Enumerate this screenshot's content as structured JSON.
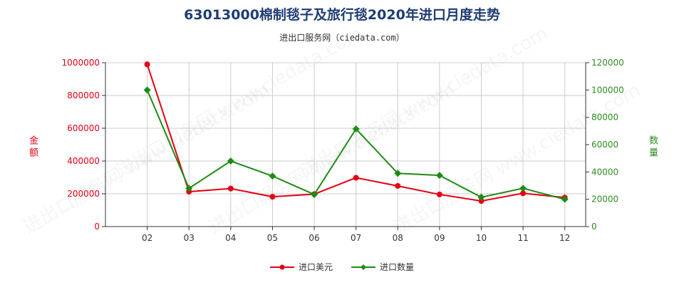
{
  "title": "63013000棉制毯子及旅行毯2020年进口月度走势",
  "subtitle": "进出口服务网（ciedata.com）",
  "watermark": "进出口服务网 www.ciedata.com",
  "colors": {
    "amount": "#e60012",
    "quantity": "#1e8c14",
    "grid": "#cccccc",
    "right_axis": "#2e8b20"
  },
  "chart_data": {
    "type": "line",
    "categories": [
      "02",
      "03",
      "04",
      "05",
      "06",
      "07",
      "08",
      "09",
      "10",
      "11",
      "12"
    ],
    "y_left": {
      "label": "金额",
      "ylim": [
        0,
        1000000
      ],
      "ticks": [
        0,
        200000,
        400000,
        600000,
        800000,
        1000000
      ]
    },
    "y_right": {
      "label": "数量",
      "ylim": [
        0,
        120000
      ],
      "ticks": [
        0,
        20000,
        40000,
        60000,
        80000,
        100000,
        120000
      ]
    },
    "series": [
      {
        "name": "进口美元",
        "axis": "left",
        "values": [
          990000,
          213000,
          232000,
          182000,
          198000,
          298000,
          248000,
          196000,
          156000,
          203000,
          177000
        ]
      },
      {
        "name": "进口数量",
        "axis": "right",
        "values": [
          100000,
          28000,
          48000,
          37000,
          23500,
          71500,
          39000,
          37500,
          21500,
          28000,
          20000
        ]
      }
    ],
    "grid": true,
    "legend": "bottom-center"
  }
}
